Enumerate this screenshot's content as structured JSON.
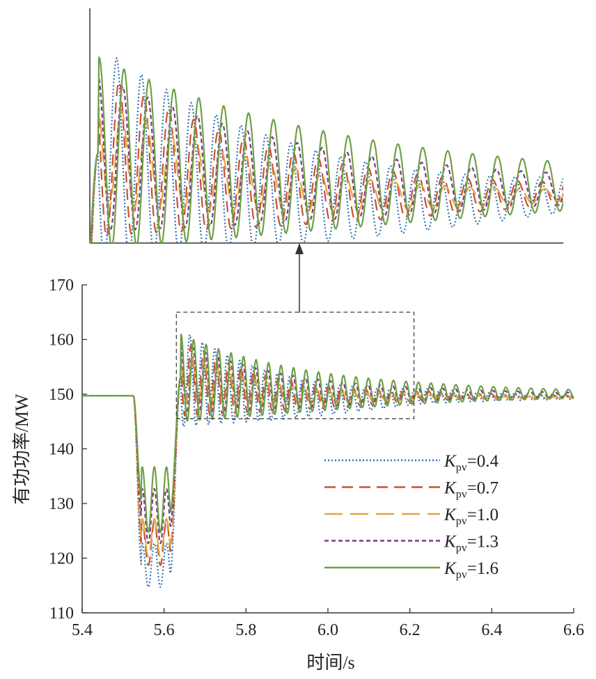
{
  "chart_data": {
    "type": "line",
    "xlabel": "时间/s",
    "ylabel": "有功功率/MW",
    "xlim": [
      5.4,
      6.6
    ],
    "ylim": [
      110,
      170
    ],
    "xticks": [
      "5.4",
      "5.6",
      "5.8",
      "6.0",
      "6.2",
      "6.4",
      "6.6"
    ],
    "yticks": [
      "110",
      "120",
      "130",
      "140",
      "150",
      "160",
      "170"
    ],
    "grid": false,
    "legend_position": "bottom-right",
    "zoom_window": {
      "xlim": [
        5.63,
        6.21
      ],
      "ylim": [
        145.5,
        165
      ]
    },
    "series": [
      {
        "name": "K",
        "sub": "pv",
        "value_label": "=0.4",
        "color": "#2f6fb0",
        "dash": "2,3",
        "params": {
          "dip": 31,
          "dip_amp": 4.0,
          "peak": 162.5,
          "osc_amp": 9.0,
          "phase": 0.25,
          "decay": 3.2,
          "final": 149.4,
          "undershoot": 1.4
        }
      },
      {
        "name": "K",
        "sub": "pv",
        "value_label": "=0.7",
        "color": "#c9512f",
        "dash": "16,9",
        "params": {
          "dip": 27,
          "dip_amp": 4.0,
          "peak": 161.0,
          "osc_amp": 7.0,
          "phase": 0.15,
          "decay": 3.5,
          "final": 149.5,
          "undershoot": 0.9
        }
      },
      {
        "name": "K",
        "sub": "pv",
        "value_label": "=1.0",
        "color": "#e0a542",
        "dash": "26,11",
        "params": {
          "dip": 26,
          "dip_amp": 3.5,
          "peak": 157.5,
          "osc_amp": 4.5,
          "phase": 0.05,
          "decay": 3.8,
          "final": 149.3,
          "undershoot": 0.8
        }
      },
      {
        "name": "K",
        "sub": "pv",
        "value_label": "=1.3",
        "color": "#7a3a8c",
        "dash": "6,4",
        "params": {
          "dip": 22,
          "dip_amp": 5.0,
          "peak": 161.5,
          "osc_amp": 6.5,
          "phase": 0.0,
          "decay": 2.8,
          "final": 149.8,
          "undershoot": 0.4
        }
      },
      {
        "name": "K",
        "sub": "pv",
        "value_label": "=1.6",
        "color": "#6ea046",
        "dash": "",
        "params": {
          "dip": 19,
          "dip_amp": 6.0,
          "peak": 163.5,
          "osc_amp": 8.0,
          "phase": -0.05,
          "decay": 2.4,
          "final": 150.0,
          "undershoot": 0.2
        }
      }
    ]
  }
}
